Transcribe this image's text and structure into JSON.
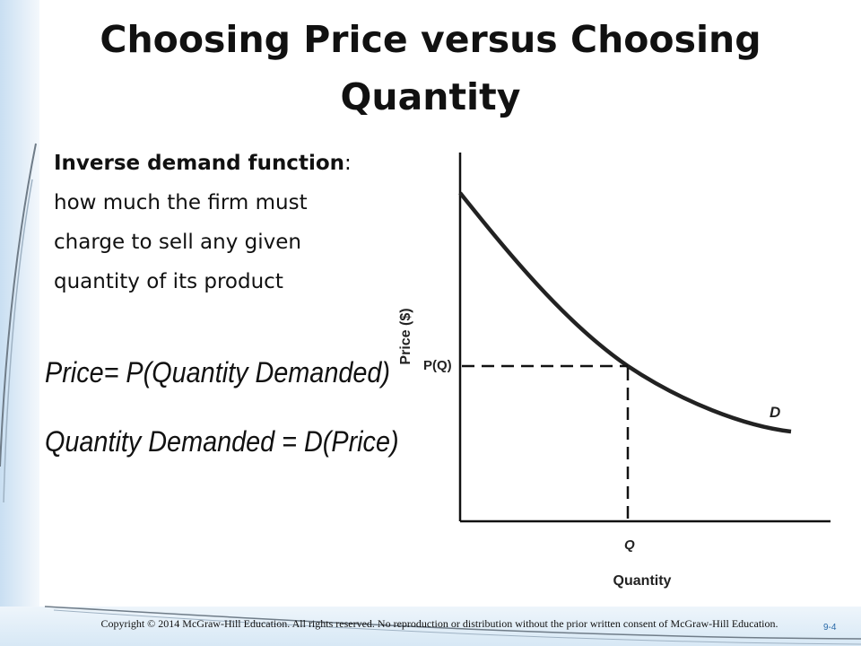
{
  "slide": {
    "title_line1": "Choosing Price versus Choosing",
    "title_line2": "Quantity",
    "definition_term": "Inverse demand function",
    "definition_text": ": how much the firm must charge to sell any given quantity of its product",
    "formula1_lhs": "Price",
    "formula1_rhs": "P(Quantity Demanded)",
    "formula2_lhs": "Quantity Demanded",
    "formula2_rhs": "D(Price)",
    "footer": "Copyright © 2014 McGraw-Hill Education. All rights reserved. No reproduction or distribution without the prior written consent of McGraw-Hill Education.",
    "slide_number": "9-4"
  },
  "graph": {
    "y_axis_label": "Price ($)",
    "x_axis_label": "Quantity",
    "curve_label": "D",
    "price_marker_label": "P(Q)",
    "quantity_marker_label": "Q"
  },
  "colors": {
    "band": "#c9dff2",
    "swoosh": "#6f7c88",
    "text": "#111111",
    "slide_number": "#2a6aa8"
  }
}
